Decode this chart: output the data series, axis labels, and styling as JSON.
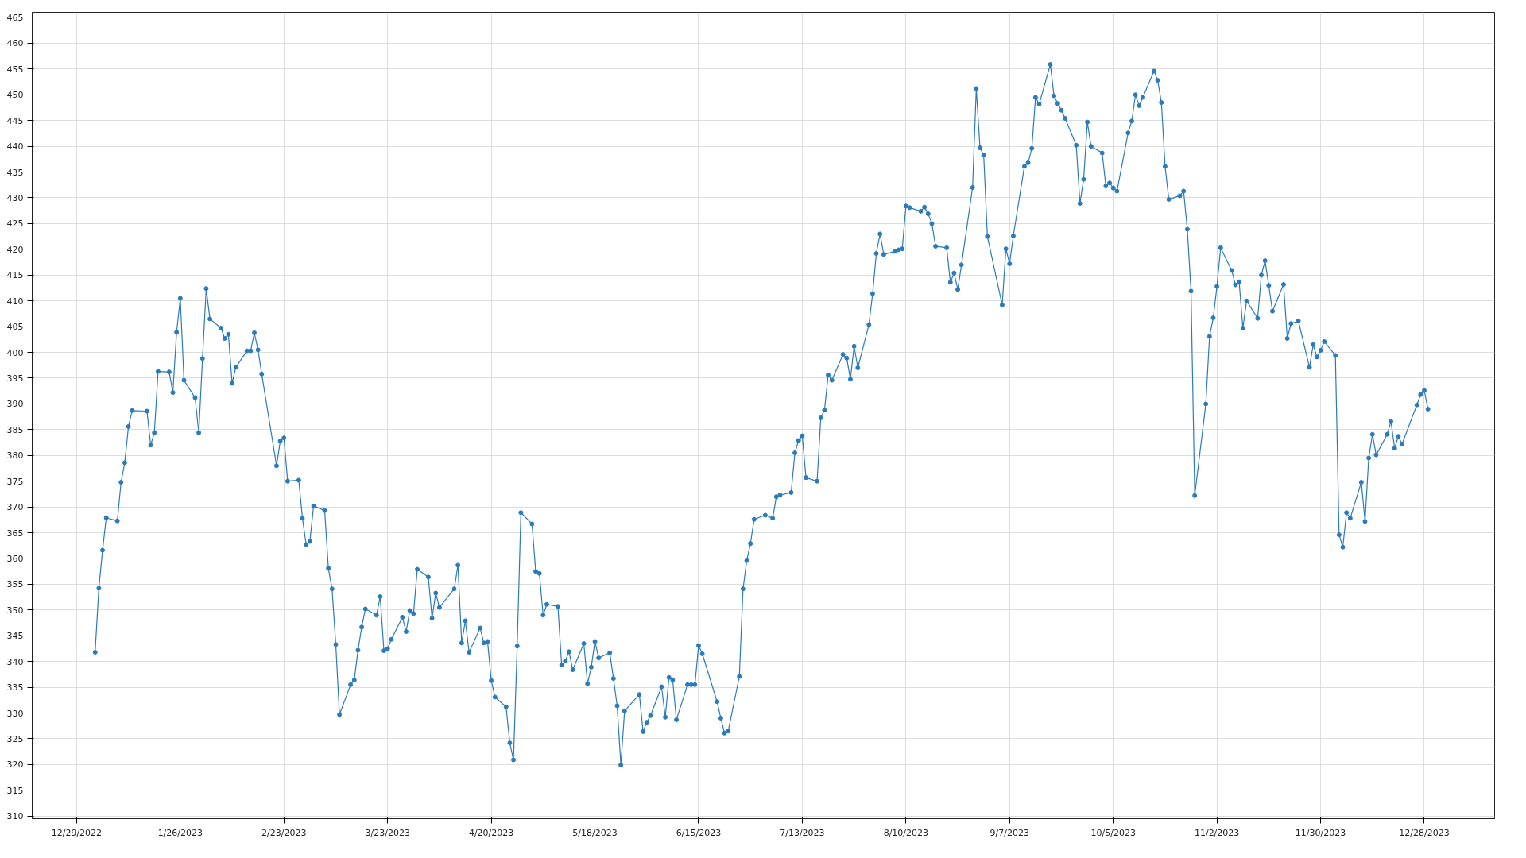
{
  "chart_data": {
    "type": "line",
    "marker": "circle",
    "line_style": "solid",
    "grid": true,
    "xlim": [
      "2022-12-17",
      "2024-01-16"
    ],
    "xticks": [
      {
        "value": "2022-12-29",
        "label": "12/29/2022"
      },
      {
        "value": "2023-01-26",
        "label": "1/26/2023"
      },
      {
        "value": "2023-02-23",
        "label": "2/23/2023"
      },
      {
        "value": "2023-03-23",
        "label": "3/23/2023"
      },
      {
        "value": "2023-04-20",
        "label": "4/20/2023"
      },
      {
        "value": "2023-05-18",
        "label": "5/18/2023"
      },
      {
        "value": "2023-06-15",
        "label": "6/15/2023"
      },
      {
        "value": "2023-07-13",
        "label": "7/13/2023"
      },
      {
        "value": "2023-08-10",
        "label": "8/10/2023"
      },
      {
        "value": "2023-09-07",
        "label": "9/7/2023"
      },
      {
        "value": "2023-10-05",
        "label": "10/5/2023"
      },
      {
        "value": "2023-11-02",
        "label": "11/2/2023"
      },
      {
        "value": "2023-11-30",
        "label": "11/30/2023"
      },
      {
        "value": "2023-12-28",
        "label": "12/28/2023"
      }
    ],
    "ylim": [
      309.5,
      466
    ],
    "yticks": [
      310,
      315,
      320,
      325,
      330,
      335,
      340,
      345,
      350,
      355,
      360,
      365,
      370,
      375,
      380,
      385,
      390,
      395,
      400,
      405,
      410,
      415,
      420,
      425,
      430,
      435,
      440,
      445,
      450,
      455,
      460,
      465
    ],
    "series": [
      {
        "color": "#2b7bba",
        "x": [
          "2023-01-03",
          "2023-01-04",
          "2023-01-05",
          "2023-01-06",
          "2023-01-09",
          "2023-01-10",
          "2023-01-11",
          "2023-01-12",
          "2023-01-13",
          "2023-01-17",
          "2023-01-18",
          "2023-01-19",
          "2023-01-20",
          "2023-01-23",
          "2023-01-24",
          "2023-01-25",
          "2023-01-26",
          "2023-01-27",
          "2023-01-30",
          "2023-01-31",
          "2023-02-01",
          "2023-02-02",
          "2023-02-03",
          "2023-02-06",
          "2023-02-07",
          "2023-02-08",
          "2023-02-09",
          "2023-02-10",
          "2023-02-13",
          "2023-02-14",
          "2023-02-15",
          "2023-02-16",
          "2023-02-17",
          "2023-02-21",
          "2023-02-22",
          "2023-02-23",
          "2023-02-24",
          "2023-02-27",
          "2023-02-28",
          "2023-03-01",
          "2023-03-02",
          "2023-03-03",
          "2023-03-06",
          "2023-03-07",
          "2023-03-08",
          "2023-03-09",
          "2023-03-10",
          "2023-03-13",
          "2023-03-14",
          "2023-03-15",
          "2023-03-16",
          "2023-03-17",
          "2023-03-20",
          "2023-03-21",
          "2023-03-22",
          "2023-03-23",
          "2023-03-24",
          "2023-03-27",
          "2023-03-28",
          "2023-03-29",
          "2023-03-30",
          "2023-03-31",
          "2023-04-03",
          "2023-04-04",
          "2023-04-05",
          "2023-04-06",
          "2023-04-10",
          "2023-04-11",
          "2023-04-12",
          "2023-04-13",
          "2023-04-14",
          "2023-04-17",
          "2023-04-18",
          "2023-04-19",
          "2023-04-20",
          "2023-04-21",
          "2023-04-24",
          "2023-04-25",
          "2023-04-26",
          "2023-04-27",
          "2023-04-28",
          "2023-05-01",
          "2023-05-02",
          "2023-05-03",
          "2023-05-04",
          "2023-05-05",
          "2023-05-08",
          "2023-05-09",
          "2023-05-10",
          "2023-05-11",
          "2023-05-12",
          "2023-05-15",
          "2023-05-16",
          "2023-05-17",
          "2023-05-18",
          "2023-05-19",
          "2023-05-22",
          "2023-05-23",
          "2023-05-24",
          "2023-05-25",
          "2023-05-26",
          "2023-05-30",
          "2023-05-31",
          "2023-06-01",
          "2023-06-02",
          "2023-06-05",
          "2023-06-06",
          "2023-06-07",
          "2023-06-08",
          "2023-06-09",
          "2023-06-12",
          "2023-06-13",
          "2023-06-14",
          "2023-06-15",
          "2023-06-16",
          "2023-06-20",
          "2023-06-21",
          "2023-06-22",
          "2023-06-23",
          "2023-06-26",
          "2023-06-27",
          "2023-06-28",
          "2023-06-29",
          "2023-06-30",
          "2023-07-03",
          "2023-07-05",
          "2023-07-06",
          "2023-07-07",
          "2023-07-10",
          "2023-07-11",
          "2023-07-12",
          "2023-07-13",
          "2023-07-14",
          "2023-07-17",
          "2023-07-18",
          "2023-07-19",
          "2023-07-20",
          "2023-07-21",
          "2023-07-24",
          "2023-07-25",
          "2023-07-26",
          "2023-07-27",
          "2023-07-28",
          "2023-07-31",
          "2023-08-01",
          "2023-08-02",
          "2023-08-03",
          "2023-08-04",
          "2023-08-07",
          "2023-08-08",
          "2023-08-09",
          "2023-08-10",
          "2023-08-11",
          "2023-08-14",
          "2023-08-15",
          "2023-08-16",
          "2023-08-17",
          "2023-08-18",
          "2023-08-21",
          "2023-08-22",
          "2023-08-23",
          "2023-08-24",
          "2023-08-25",
          "2023-08-28",
          "2023-08-29",
          "2023-08-30",
          "2023-08-31",
          "2023-09-01",
          "2023-09-05",
          "2023-09-06",
          "2023-09-07",
          "2023-09-08",
          "2023-09-11",
          "2023-09-12",
          "2023-09-13",
          "2023-09-14",
          "2023-09-15",
          "2023-09-18",
          "2023-09-19",
          "2023-09-20",
          "2023-09-21",
          "2023-09-22",
          "2023-09-25",
          "2023-09-26",
          "2023-09-27",
          "2023-09-28",
          "2023-09-29",
          "2023-10-02",
          "2023-10-03",
          "2023-10-04",
          "2023-10-05",
          "2023-10-06",
          "2023-10-09",
          "2023-10-10",
          "2023-10-11",
          "2023-10-12",
          "2023-10-13",
          "2023-10-16",
          "2023-10-17",
          "2023-10-18",
          "2023-10-19",
          "2023-10-20",
          "2023-10-23",
          "2023-10-24",
          "2023-10-25",
          "2023-10-26",
          "2023-10-27",
          "2023-10-30",
          "2023-10-31",
          "2023-11-01",
          "2023-11-02",
          "2023-11-03",
          "2023-11-06",
          "2023-11-07",
          "2023-11-08",
          "2023-11-09",
          "2023-11-10",
          "2023-11-13",
          "2023-11-14",
          "2023-11-15",
          "2023-11-16",
          "2023-11-17",
          "2023-11-20",
          "2023-11-21",
          "2023-11-22",
          "2023-11-24",
          "2023-11-27",
          "2023-11-28",
          "2023-11-29",
          "2023-11-30",
          "2023-12-01",
          "2023-12-04",
          "2023-12-05",
          "2023-12-06",
          "2023-12-07",
          "2023-12-08",
          "2023-12-11",
          "2023-12-12",
          "2023-12-13",
          "2023-12-14",
          "2023-12-15",
          "2023-12-18",
          "2023-12-19",
          "2023-12-20",
          "2023-12-21",
          "2023-12-22",
          "2023-12-26",
          "2023-12-27",
          "2023-12-28",
          "2023-12-29"
        ],
        "values": [
          341.8,
          354.2,
          361.6,
          367.9,
          367.3,
          374.8,
          378.6,
          385.6,
          388.7,
          388.6,
          382.0,
          384.4,
          396.3,
          396.2,
          392.2,
          403.9,
          410.5,
          394.6,
          391.2,
          384.4,
          398.8,
          412.4,
          406.5,
          404.7,
          402.7,
          403.5,
          394.0,
          397.1,
          400.3,
          400.3,
          403.8,
          400.5,
          395.8,
          378.0,
          382.8,
          383.4,
          375.0,
          375.2,
          367.8,
          362.7,
          363.3,
          370.2,
          369.3,
          358.1,
          354.1,
          343.3,
          329.7,
          335.5,
          336.4,
          342.2,
          346.7,
          350.2,
          349.0,
          352.6,
          342.1,
          342.5,
          344.3,
          348.6,
          345.8,
          349.9,
          349.3,
          357.9,
          356.4,
          348.4,
          353.3,
          350.5,
          354.1,
          358.7,
          343.6,
          347.9,
          341.8,
          346.5,
          343.6,
          343.9,
          336.3,
          333.1,
          331.2,
          324.2,
          320.9,
          343.0,
          368.9,
          366.7,
          357.5,
          357.1,
          349.0,
          351.1,
          350.7,
          339.3,
          340.1,
          341.9,
          338.4,
          343.5,
          335.7,
          338.9,
          343.9,
          340.7,
          341.7,
          336.7,
          331.4,
          319.9,
          330.4,
          333.6,
          326.4,
          328.2,
          329.5,
          335.1,
          329.2,
          336.9,
          336.4,
          328.7,
          335.5,
          335.5,
          335.5,
          343.1,
          341.5,
          332.2,
          329.0,
          326.1,
          326.5,
          337.1,
          354.1,
          359.6,
          362.9,
          367.6,
          368.4,
          367.8,
          372.0,
          372.3,
          372.8,
          380.5,
          382.9,
          383.8,
          375.7,
          375.0,
          387.3,
          388.8,
          395.6,
          394.6,
          399.6,
          398.9,
          394.8,
          401.2,
          397.0,
          405.4,
          411.4,
          419.2,
          423.0,
          419.0,
          419.6,
          419.9,
          420.1,
          428.4,
          428.1,
          427.4,
          428.2,
          426.9,
          425.0,
          420.6,
          420.3,
          413.6,
          415.4,
          412.2,
          417.0,
          432.0,
          451.2,
          439.7,
          438.3,
          422.5,
          409.2,
          420.1,
          417.2,
          422.6,
          436.1,
          436.8,
          439.6,
          449.5,
          448.2,
          455.9,
          449.8,
          448.3,
          447.0,
          445.4,
          440.2,
          428.9,
          433.6,
          444.7,
          440.0,
          438.7,
          432.3,
          432.9,
          431.9,
          431.3,
          442.6,
          444.9,
          450.0,
          447.9,
          449.5,
          454.6,
          452.8,
          448.5,
          436.1,
          429.7,
          430.4,
          431.3,
          423.9,
          411.9,
          372.2,
          390.0,
          403.1,
          406.7,
          412.8,
          420.3,
          415.9,
          413.1,
          413.7,
          404.7,
          410.0,
          406.6,
          415.0,
          417.8,
          413.0,
          408.0,
          413.2,
          402.7,
          405.6,
          406.1,
          397.1,
          401.5,
          399.1,
          400.4,
          402.1,
          399.4,
          364.6,
          362.2,
          368.9,
          367.8,
          374.8,
          367.2,
          379.5,
          384.1,
          380.1,
          384.1,
          386.6,
          381.4,
          383.7,
          382.2,
          389.8,
          391.8,
          392.6,
          389.0
        ]
      }
    ]
  }
}
